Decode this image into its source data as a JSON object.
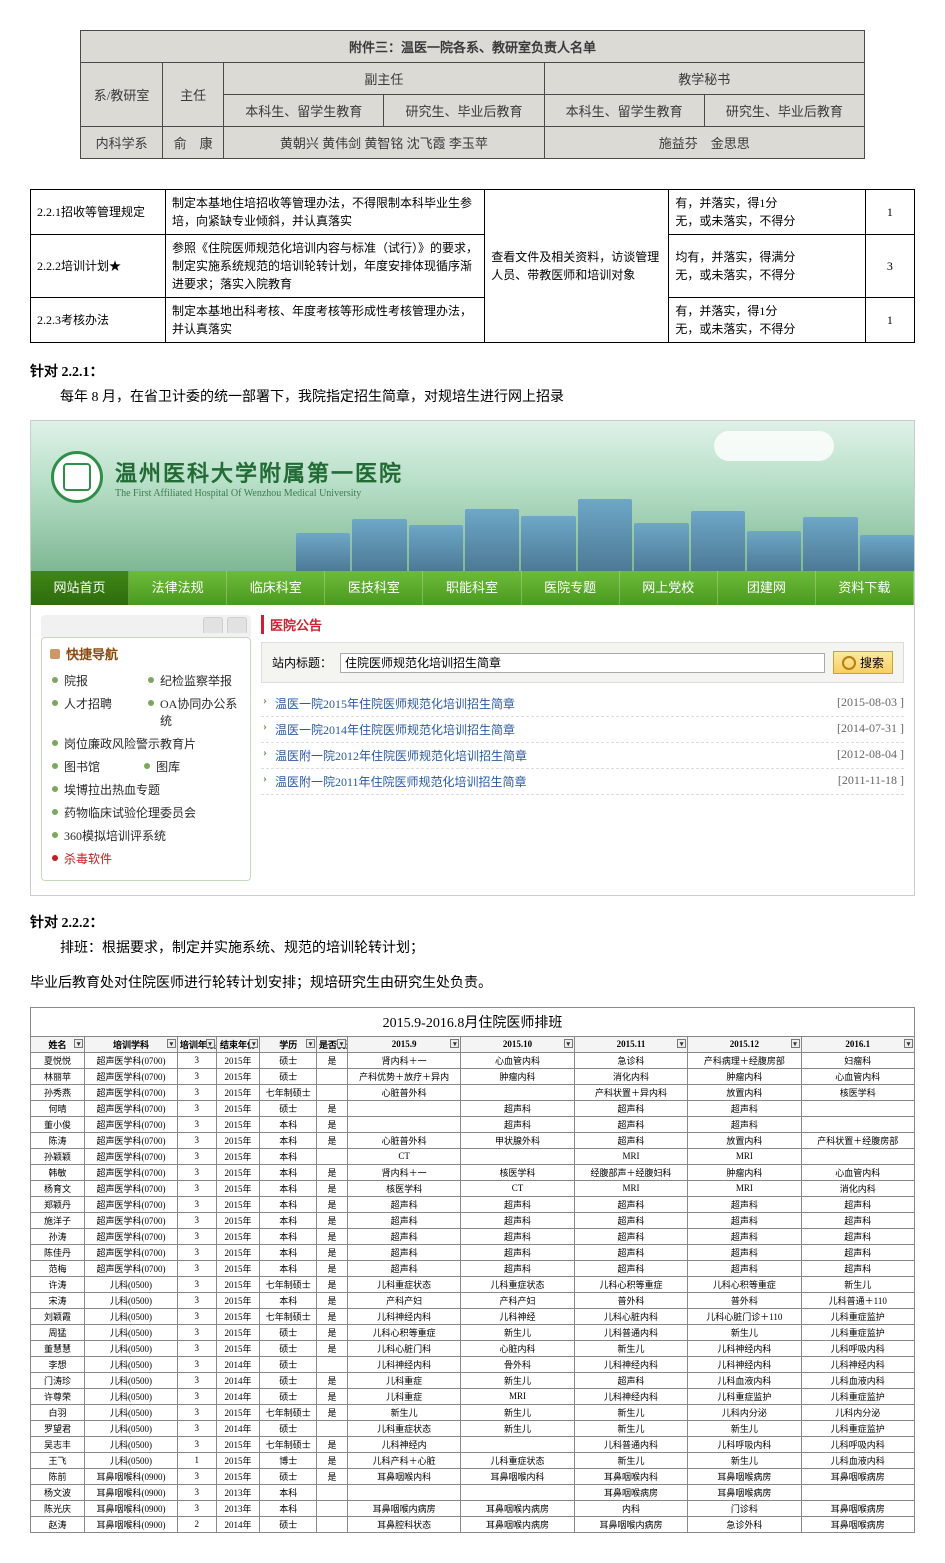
{
  "attachment": {
    "title": "附件三：温医一院各系、教研室负责人名单",
    "headers": {
      "dept": "系/教研室",
      "director": "主任",
      "vice": "副主任",
      "vice_a": "本科生、留学生教育",
      "vice_b": "研究生、毕业后教育",
      "sec": "教学秘书",
      "sec_a": "本科生、留学生教育",
      "sec_b": "研究生、毕业后教育"
    },
    "row": {
      "dept": "内科学系",
      "director": "俞　康",
      "vice": "黄朝兴 黄伟剑 黄智铭 沈飞霞 李玉苹",
      "sec": "施益芬　金思思"
    }
  },
  "criteria": [
    {
      "id": "2.2.1招收等管理规定",
      "req": "制定本基地住培招收等管理办法，不得限制本科毕业生参培，向紧缺专业倾斜，并认真落实",
      "check": "",
      "rule": "有，并落实，得1分\n无，或未落实，不得分",
      "score": "1"
    },
    {
      "id": "2.2.2培训计划★",
      "req": "参照《住院医师规范化培训内容与标准（试行）》的要求，制定实施系统规范的培训轮转计划，年度安排体现循序渐进要求；落实入院教育",
      "check": "查看文件及相关资料，访谈管理人员、带教医师和培训对象",
      "rule": "均有，并落实，得满分\n无，或未落实，不得分",
      "score": "3"
    },
    {
      "id": "2.2.3考核办法",
      "req": "制定本基地出科考核、年度考核等形成性考核管理办法，并认真落实",
      "check": "",
      "rule": "有，并落实，得1分\n无，或未落实，不得分",
      "score": "1"
    }
  ],
  "para1": {
    "head": "针对 2.2.1：",
    "body": "每年 8 月，在省卫计委的统一部署下，我院指定招生简章，对规培生进行网上招录"
  },
  "para2": {
    "head": "针对 2.2.2：",
    "line1": "排班：根据要求，制定并实施系统、规范的培训轮转计划；",
    "line2": "毕业后教育处对住院医师进行轮转计划安排；规培研究生由研究生处负责。"
  },
  "site": {
    "logo_cn": "温州医科大学附属第一医院",
    "logo_en": "The First Affiliated Hospital Of Wenzhou Medical University",
    "nav": [
      "网站首页",
      "法律法规",
      "临床科室",
      "医技科室",
      "职能科室",
      "医院专题",
      "网上党校",
      "团建网",
      "资料下载"
    ],
    "side_title": "快捷导航",
    "side_items_two": [
      {
        "t": "院报"
      },
      {
        "t": "纪检监察举报"
      },
      {
        "t": "人才招聘"
      },
      {
        "t": "OA协同办公系统"
      }
    ],
    "side_items_one": [
      {
        "t": "岗位廉政风险警示教育片"
      },
      {
        "t": "图书馆",
        "t2": "图库",
        "two": true
      },
      {
        "t": "埃博拉出热血专题"
      },
      {
        "t": "药物临床试验伦理委员会"
      },
      {
        "t": "360模拟培训评系统"
      },
      {
        "t": "杀毒软件",
        "red": true
      }
    ],
    "main_title": "医院公告",
    "search_label": "站内标题：",
    "search_value": "住院医师规范化培训招生简章",
    "search_btn": "搜索",
    "notices": [
      {
        "t": "温医一院2015年住院医师规范化培训招生简章",
        "d": "[2015-08-03 ]"
      },
      {
        "t": "温医一院2014年住院医师规范化培训招生简章",
        "d": "[2014-07-31 ]"
      },
      {
        "t": "温医附一院2012年住院医师规范化培训招生简章",
        "d": "[2012-08-04 ]"
      },
      {
        "t": "温医附一院2011年住院医师规范化培训招生简章",
        "d": "[2011-11-18 ]"
      }
    ]
  },
  "schedule": {
    "title": "2015.9-2016.8月住院医师排班",
    "headers": [
      "姓名",
      "培训学科",
      "培训年限",
      "结束年份",
      "学历",
      "是否优选第二",
      "2015.9",
      "2015.10",
      "2015.11",
      "2015.12",
      "2016.1"
    ],
    "col_classes": [
      "nm",
      "dpt",
      "yr",
      "yr2",
      "deg",
      "flag",
      "mon",
      "mon",
      "mon",
      "mon",
      "mon"
    ],
    "rows": [
      [
        "夏悦悦",
        "超声医学科(0700)",
        "3",
        "2015年",
        "硕士",
        "是",
        "肾内科＋一",
        "心血管内科",
        "急诊科",
        "产科病理＋经腹房部",
        "妇瘤科"
      ],
      [
        "林丽苹",
        "超声医学科(0700)",
        "3",
        "2015年",
        "硕士",
        "",
        "产科优势＋放疗＋异内",
        "肿瘤内科",
        "消化内科",
        "肿瘤内科",
        "心血管内科"
      ],
      [
        "孙秀燕",
        "超声医学科(0700)",
        "3",
        "2015年",
        "七年制硕士",
        "",
        "心脏普外科",
        "",
        "产科状置＋异内科",
        "放置内科",
        "核医学科"
      ],
      [
        "何晴",
        "超声医学科(0700)",
        "3",
        "2015年",
        "硕士",
        "是",
        "",
        "超声科",
        "超声科",
        "超声科",
        ""
      ],
      [
        "董小俊",
        "超声医学科(0700)",
        "3",
        "2015年",
        "本科",
        "是",
        "",
        "超声科",
        "超声科",
        "超声科",
        ""
      ],
      [
        "陈涛",
        "超声医学科(0700)",
        "3",
        "2015年",
        "本科",
        "是",
        "心脏普外科",
        "甲状腺外科",
        "超声科",
        "放置内科",
        "产科状置＋经腹房部"
      ],
      [
        "孙颖颖",
        "超声医学科(0700)",
        "3",
        "2015年",
        "本科",
        "",
        "CТ",
        "",
        "МRI",
        "МRI",
        ""
      ],
      [
        "韩敏",
        "超声医学科(0700)",
        "3",
        "2015年",
        "本科",
        "是",
        "肾内科＋一",
        "核医学科",
        "经腹部声＋经腹妇科",
        "肿瘤内科",
        "心血管内科"
      ],
      [
        "杨育文",
        "超声医学科(0700)",
        "3",
        "2015年",
        "本科",
        "是",
        "核医学科",
        "CТ",
        "МRI",
        "МRI",
        "消化内科"
      ],
      [
        "郑颖丹",
        "超声医学科(0700)",
        "3",
        "2015年",
        "本科",
        "是",
        "超声科",
        "超声科",
        "超声科",
        "超声科",
        "超声科"
      ],
      [
        "施洋子",
        "超声医学科(0700)",
        "3",
        "2015年",
        "本科",
        "是",
        "超声科",
        "超声科",
        "超声科",
        "超声科",
        "超声科"
      ],
      [
        "孙涛",
        "超声医学科(0700)",
        "3",
        "2015年",
        "本科",
        "是",
        "超声科",
        "超声科",
        "超声科",
        "超声科",
        "超声科"
      ],
      [
        "陈佳丹",
        "超声医学科(0700)",
        "3",
        "2015年",
        "本科",
        "是",
        "超声科",
        "超声科",
        "超声科",
        "超声科",
        "超声科"
      ],
      [
        "范梅",
        "超声医学科(0700)",
        "3",
        "2015年",
        "本科",
        "是",
        "超声科",
        "超声科",
        "超声科",
        "超声科",
        "超声科"
      ],
      [
        "许涛",
        "儿科(0500)",
        "3",
        "2015年",
        "七年制硕士",
        "是",
        "儿科重症状态",
        "儿科重症状态",
        "儿科心积等重症",
        "儿科心积等重症",
        "新生儿"
      ],
      [
        "宋涛",
        "儿科(0500)",
        "3",
        "2015年",
        "本科",
        "是",
        "产科产妇",
        "产科产妇",
        "普外科",
        "普外科",
        "儿科普通＋110"
      ],
      [
        "刘颖霞",
        "儿科(0500)",
        "3",
        "2015年",
        "七年制硕士",
        "是",
        "儿科神经内科",
        "儿科神经",
        "儿科心脏内科",
        "儿科心脏门诊＋110",
        "儿科重症监护"
      ],
      [
        "周猛",
        "儿科(0500)",
        "3",
        "2015年",
        "硕士",
        "是",
        "儿科心积等重症",
        "新生儿",
        "儿科普通内科",
        "新生儿",
        "儿科重症监护"
      ],
      [
        "董慧慧",
        "儿科(0500)",
        "3",
        "2015年",
        "硕士",
        "是",
        "儿科心脏门科",
        "心脏内科",
        "新生儿",
        "儿科神经内科",
        "儿科呼吸内科"
      ],
      [
        "李想",
        "儿科(0500)",
        "3",
        "2014年",
        "硕士",
        "",
        "儿科神经内科",
        "骨外科",
        "儿科神经内科",
        "儿科神经内科",
        "儿科神经内科"
      ],
      [
        "门涛珍",
        "儿科(0500)",
        "3",
        "2014年",
        "硕士",
        "是",
        "儿科重症",
        "新生儿",
        "超声科",
        "儿科血液内科",
        "儿科血液内科"
      ],
      [
        "许尊荣",
        "儿科(0500)",
        "3",
        "2014年",
        "硕士",
        "是",
        "儿科重症",
        "МRI",
        "儿科神经内科",
        "儿科重症监护",
        "儿科重症监护"
      ],
      [
        "白羽",
        "儿科(0500)",
        "3",
        "2015年",
        "七年制硕士",
        "是",
        "新生儿",
        "新生儿",
        "新生儿",
        "儿科内分泌",
        "儿科内分泌"
      ],
      [
        "罗望君",
        "儿科(0500)",
        "3",
        "2014年",
        "硕士",
        "",
        "儿科重症状态",
        "新生儿",
        "新生儿",
        "新生儿",
        "儿科重症监护"
      ],
      [
        "吴志丰",
        "儿科(0500)",
        "3",
        "2015年",
        "七年制硕士",
        "是",
        "儿科神经内",
        "",
        "儿科普通内科",
        "儿科呼吸内科",
        "儿科呼吸内科"
      ],
      [
        "王飞",
        "儿科(0500)",
        "1",
        "2015年",
        "博士",
        "是",
        "儿科产科＋心脏",
        "儿科重症状态",
        "新生儿",
        "新生儿",
        "儿科血液内科"
      ],
      [
        "陈前",
        "耳鼻咽喉科(0900)",
        "3",
        "2015年",
        "硕士",
        "是",
        "耳鼻咽喉内科",
        "耳鼻咽喉内科",
        "耳鼻咽喉内科",
        "耳鼻咽喉病房",
        "耳鼻咽喉病房"
      ],
      [
        "杨文波",
        "耳鼻咽喉科(0900)",
        "3",
        "2013年",
        "本科",
        "",
        "",
        "",
        "耳鼻咽喉病房",
        "耳鼻咽喉病房",
        ""
      ],
      [
        "陈光庆",
        "耳鼻咽喉科(0900)",
        "3",
        "2013年",
        "本科",
        "",
        "耳鼻咽喉内病房",
        "耳鼻咽喉内病房",
        "内科",
        "门诊科",
        "耳鼻咽喉病房"
      ],
      [
        "赵涛",
        "耳鼻咽喉科(0900)",
        "2",
        "2014年",
        "硕士",
        "",
        "耳鼻腔科状态",
        "耳鼻咽喉内病房",
        "耳鼻咽喉内病房",
        "急诊外科",
        "耳鼻咽喉病房"
      ]
    ]
  }
}
